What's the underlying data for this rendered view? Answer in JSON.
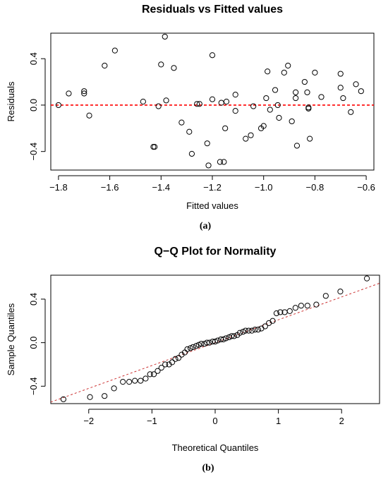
{
  "chart_data": [
    {
      "type": "scatter",
      "title": "Residuals vs Fitted values",
      "xlabel": "Fitted values",
      "ylabel": "Residuals",
      "caption": "(a)",
      "xlim": [
        -1.83,
        -0.57
      ],
      "ylim": [
        -0.56,
        0.62
      ],
      "xticks": [
        -1.8,
        -1.6,
        -1.4,
        -1.2,
        -1.0,
        -0.8,
        -0.6
      ],
      "xtick_labels": [
        "−1.8",
        "−1.6",
        "−1.4",
        "−1.2",
        "−1.0",
        "−0.8",
        "−0.6"
      ],
      "yticks": [
        -0.4,
        0.0,
        0.4
      ],
      "ytick_labels": [
        "−0.4",
        "0.0",
        "0.4"
      ],
      "reference_line": {
        "type": "horizontal",
        "y": 0,
        "color": "#ff0000",
        "style": "dashed"
      },
      "points": [
        [
          -1.8,
          0.0
        ],
        [
          -1.76,
          0.1
        ],
        [
          -1.7,
          0.12
        ],
        [
          -1.7,
          0.1
        ],
        [
          -1.68,
          -0.09
        ],
        [
          -1.62,
          0.34
        ],
        [
          -1.58,
          0.47
        ],
        [
          -1.47,
          0.03
        ],
        [
          -1.43,
          -0.36
        ],
        [
          -1.425,
          -0.36
        ],
        [
          -1.41,
          -0.01
        ],
        [
          -1.4,
          0.35
        ],
        [
          -1.385,
          0.59
        ],
        [
          -1.38,
          0.04
        ],
        [
          -1.35,
          0.32
        ],
        [
          -1.32,
          -0.15
        ],
        [
          -1.29,
          -0.23
        ],
        [
          -1.28,
          -0.42
        ],
        [
          -1.26,
          0.01
        ],
        [
          -1.25,
          0.01
        ],
        [
          -1.22,
          -0.33
        ],
        [
          -1.215,
          -0.52
        ],
        [
          -1.2,
          0.43
        ],
        [
          -1.2,
          0.05
        ],
        [
          -1.17,
          -0.49
        ],
        [
          -1.165,
          0.02
        ],
        [
          -1.155,
          -0.49
        ],
        [
          -1.15,
          -0.2
        ],
        [
          -1.145,
          0.03
        ],
        [
          -1.11,
          0.09
        ],
        [
          -1.11,
          -0.05
        ],
        [
          -1.07,
          -0.29
        ],
        [
          -1.05,
          -0.26
        ],
        [
          -1.04,
          -0.01
        ],
        [
          -1.01,
          -0.2
        ],
        [
          -1.0,
          -0.18
        ],
        [
          -0.99,
          0.06
        ],
        [
          -0.985,
          0.29
        ],
        [
          -0.975,
          -0.04
        ],
        [
          -0.955,
          0.13
        ],
        [
          -0.945,
          0.0
        ],
        [
          -0.94,
          -0.11
        ],
        [
          -0.92,
          0.28
        ],
        [
          -0.905,
          0.34
        ],
        [
          -0.89,
          -0.14
        ],
        [
          -0.875,
          0.06
        ],
        [
          -0.875,
          0.11
        ],
        [
          -0.87,
          -0.35
        ],
        [
          -0.84,
          0.2
        ],
        [
          -0.83,
          0.11
        ],
        [
          -0.825,
          -0.02
        ],
        [
          -0.825,
          -0.03
        ],
        [
          -0.82,
          -0.29
        ],
        [
          -0.8,
          0.28
        ],
        [
          -0.775,
          0.07
        ],
        [
          -0.7,
          0.27
        ],
        [
          -0.7,
          0.15
        ],
        [
          -0.69,
          0.06
        ],
        [
          -0.66,
          -0.06
        ],
        [
          -0.64,
          0.18
        ],
        [
          -0.62,
          0.12
        ]
      ]
    },
    {
      "type": "scatter",
      "title": "Q−Q Plot for Normality",
      "xlabel": "Theoretical Quantiles",
      "ylabel": "Sample Quantiles",
      "caption": "(b)",
      "xlim": [
        -2.6,
        2.6
      ],
      "ylim": [
        -0.56,
        0.62
      ],
      "xticks": [
        -2,
        -1,
        0,
        1,
        2
      ],
      "xtick_labels": [
        "−2",
        "−1",
        "0",
        "1",
        "2"
      ],
      "yticks": [
        -0.4,
        0.0,
        0.4
      ],
      "ytick_labels": [
        "−0.4",
        "0.0",
        "0.4"
      ],
      "reference_line": {
        "type": "line",
        "intercept": 0.0,
        "slope": 0.21,
        "color": "#cc3333",
        "style": "dashed"
      },
      "points": [
        [
          -2.4,
          -0.52
        ],
        [
          -1.98,
          -0.5
        ],
        [
          -1.75,
          -0.49
        ],
        [
          -1.6,
          -0.42
        ],
        [
          -1.46,
          -0.36
        ],
        [
          -1.36,
          -0.36
        ],
        [
          -1.27,
          -0.35
        ],
        [
          -1.18,
          -0.35
        ],
        [
          -1.1,
          -0.33
        ],
        [
          -1.03,
          -0.29
        ],
        [
          -0.97,
          -0.29
        ],
        [
          -0.91,
          -0.26
        ],
        [
          -0.85,
          -0.23
        ],
        [
          -0.79,
          -0.2
        ],
        [
          -0.73,
          -0.2
        ],
        [
          -0.68,
          -0.18
        ],
        [
          -0.63,
          -0.15
        ],
        [
          -0.58,
          -0.14
        ],
        [
          -0.53,
          -0.11
        ],
        [
          -0.48,
          -0.09
        ],
        [
          -0.44,
          -0.06
        ],
        [
          -0.39,
          -0.05
        ],
        [
          -0.35,
          -0.04
        ],
        [
          -0.3,
          -0.03
        ],
        [
          -0.26,
          -0.02
        ],
        [
          -0.22,
          -0.01
        ],
        [
          -0.17,
          -0.01
        ],
        [
          -0.13,
          0.0
        ],
        [
          -0.09,
          0.0
        ],
        [
          -0.04,
          0.01
        ],
        [
          0.0,
          0.01
        ],
        [
          0.04,
          0.02
        ],
        [
          0.09,
          0.03
        ],
        [
          0.13,
          0.03
        ],
        [
          0.17,
          0.04
        ],
        [
          0.22,
          0.05
        ],
        [
          0.26,
          0.06
        ],
        [
          0.3,
          0.06
        ],
        [
          0.35,
          0.07
        ],
        [
          0.39,
          0.09
        ],
        [
          0.44,
          0.1
        ],
        [
          0.48,
          0.11
        ],
        [
          0.53,
          0.11
        ],
        [
          0.58,
          0.11
        ],
        [
          0.63,
          0.12
        ],
        [
          0.68,
          0.12
        ],
        [
          0.73,
          0.13
        ],
        [
          0.79,
          0.15
        ],
        [
          0.85,
          0.18
        ],
        [
          0.91,
          0.2
        ],
        [
          0.97,
          0.27
        ],
        [
          1.03,
          0.28
        ],
        [
          1.1,
          0.28
        ],
        [
          1.18,
          0.29
        ],
        [
          1.27,
          0.32
        ],
        [
          1.36,
          0.34
        ],
        [
          1.46,
          0.34
        ],
        [
          1.6,
          0.35
        ],
        [
          1.75,
          0.43
        ],
        [
          1.98,
          0.47
        ],
        [
          2.4,
          0.59
        ]
      ]
    }
  ]
}
